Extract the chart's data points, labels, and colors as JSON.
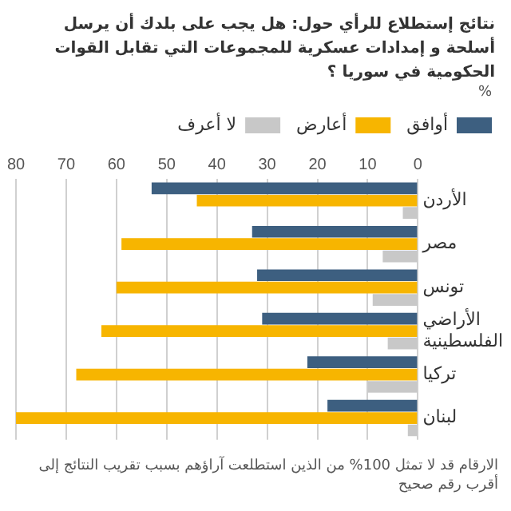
{
  "chart_data": {
    "type": "bar",
    "orientation": "horizontal",
    "title": "نتائج إستطلاع للرأي حول: هل يجب على بلدك أن يرسل أسلحة و إمدادات عسكرية للمجموعات التي تقابل القوات الحكومية في سوريا ؟",
    "xlabel": "%",
    "categories": [
      "الأردن",
      "مصر",
      "تونس",
      "الأراضي الفلسطينية",
      "تركيا",
      "لبنان"
    ],
    "series": [
      {
        "name": "أوافق",
        "color": "#3d5f80",
        "values": [
          53,
          33,
          32,
          31,
          22,
          18
        ]
      },
      {
        "name": "أعارض",
        "color": "#f7b500",
        "values": [
          44,
          59,
          60,
          63,
          68,
          80
        ]
      },
      {
        "name": "لا أعرف",
        "color": "#c8c8c8",
        "values": [
          3,
          7,
          9,
          6,
          10,
          2
        ]
      }
    ],
    "xlim": [
      80,
      0
    ],
    "xticks": [
      0,
      10,
      20,
      30,
      40,
      50,
      60,
      70,
      80
    ],
    "grid": "x",
    "legend": "top right",
    "annotations": [
      "الارقام قد لا تمثل 100% من الذين استطلعت آراؤهم بسبب تقريب النتائج إلى أقرب رقم صحيح"
    ]
  }
}
